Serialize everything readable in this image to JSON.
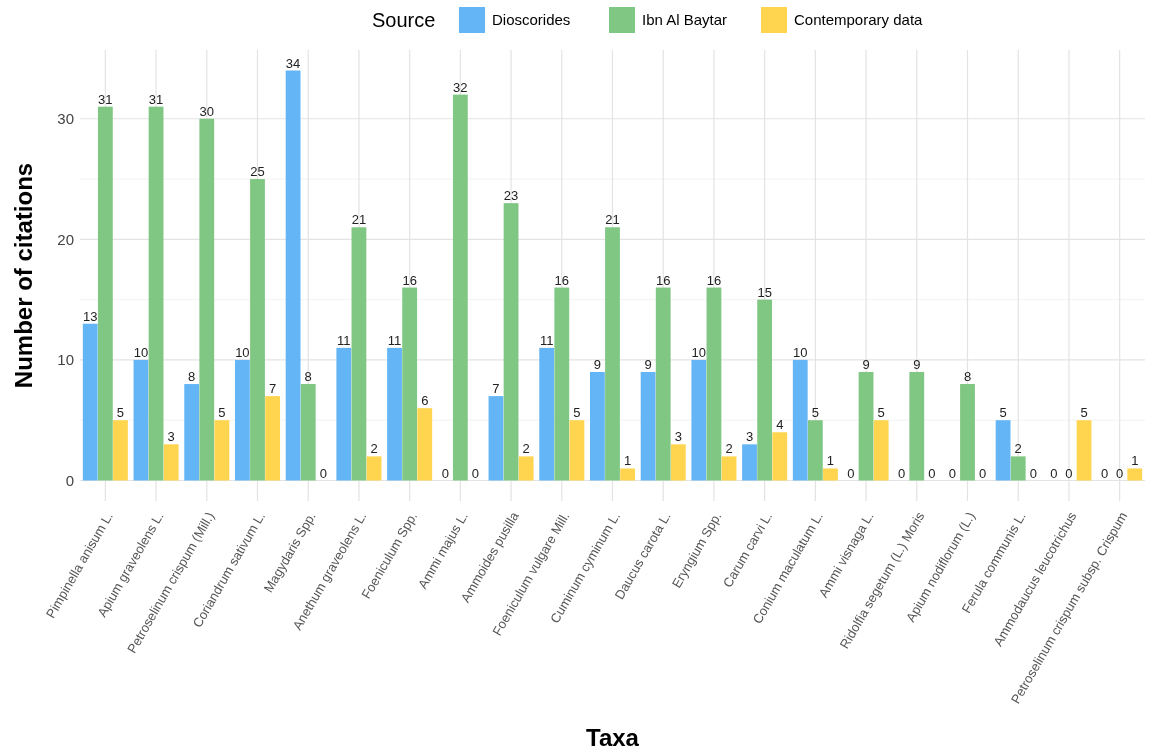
{
  "chart_data": {
    "type": "bar",
    "xlabel": "Taxa",
    "ylabel": "Number of citations",
    "legend_title": "Source",
    "legend": "top",
    "categories": [
      "Pimpinella anisum L.",
      "Apium graveolens L.",
      "Petroselinum crispum (Mill.)",
      "Coriandrum sativum L.",
      "Magydaris Spp.",
      "Anethum graveolens L.",
      "Foeniculum Spp.",
      "Ammi majus L.",
      "Ammoides pusilla",
      "Foeniculum vulgare Mill.",
      "Cuminum cyminum L.",
      "Daucus carota L.",
      "Eryngium Spp.",
      "Carum carvi L.",
      "Conium maculatum L.",
      "Ammi visnaga L.",
      "Ridolfia segetum (L.) Moris",
      "Apium nodiflorum (L.)",
      "Ferula communis L.",
      "Ammodaucus leucotrichus",
      "Petroselinum crispum subsp. Crispum"
    ],
    "series": [
      {
        "name": "Dioscorides",
        "color": "#64b5f6",
        "values": [
          13,
          10,
          8,
          10,
          34,
          11,
          11,
          0,
          7,
          11,
          9,
          9,
          10,
          3,
          10,
          0,
          0,
          0,
          5,
          0,
          0
        ]
      },
      {
        "name": "Ibn Al Baytar",
        "color": "#81c784",
        "values": [
          31,
          31,
          30,
          25,
          8,
          21,
          16,
          32,
          23,
          16,
          21,
          16,
          16,
          15,
          5,
          9,
          9,
          8,
          2,
          0,
          0
        ]
      },
      {
        "name": "Contemporary data",
        "color": "#ffd54f",
        "values": [
          5,
          3,
          5,
          7,
          0,
          2,
          6,
          0,
          2,
          5,
          1,
          3,
          2,
          4,
          1,
          5,
          0,
          0,
          0,
          5,
          1
        ]
      }
    ],
    "ylim": [
      -1.7,
      35.7
    ],
    "yticks": [
      0,
      10,
      20,
      30
    ],
    "grid": true,
    "data_labels": true
  }
}
